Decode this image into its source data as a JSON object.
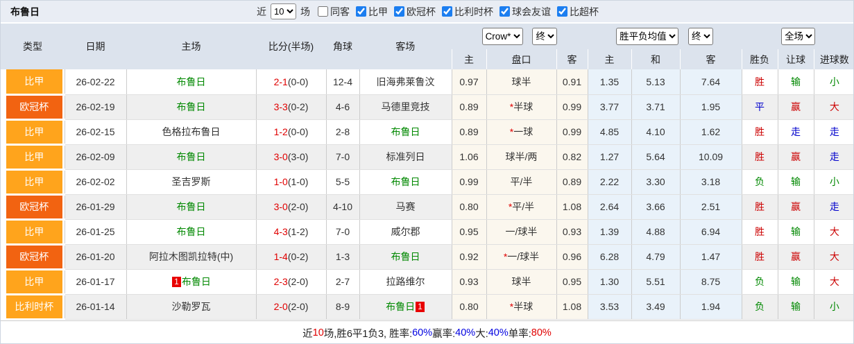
{
  "title": "布鲁日",
  "controls": {
    "recent_label": "近",
    "count_select": "10",
    "matches_label": "场",
    "checkboxes": [
      {
        "label": "同客",
        "checked": false
      },
      {
        "label": "比甲",
        "checked": true
      },
      {
        "label": "欧冠杯",
        "checked": true
      },
      {
        "label": "比利时杯",
        "checked": true
      },
      {
        "label": "球会友谊",
        "checked": true
      },
      {
        "label": "比超杯",
        "checked": true
      }
    ]
  },
  "header": {
    "columns": [
      "类型",
      "日期",
      "主场",
      "比分(半场)",
      "角球",
      "客场"
    ],
    "odds_select": "Crow*",
    "odds_state_select": "终",
    "avg_select": "胜平负均值",
    "avg_state_select": "终",
    "scope_select": "全场",
    "sub_columns": [
      "主",
      "盘口",
      "客",
      "主",
      "和",
      "客",
      "胜负",
      "让球",
      "进球数"
    ]
  },
  "rows": [
    {
      "type": "比甲",
      "date": "26-02-22",
      "home": "布鲁日",
      "home_self": true,
      "home_rank": "",
      "score": "2-1",
      "half": "(0-0)",
      "corners": "12-4",
      "away": "旧海弗莱鲁汶",
      "away_self": false,
      "away_rank": "",
      "odds_home": "0.97",
      "handicap": "球半",
      "handicap_star": false,
      "odds_away": "0.91",
      "avg_home": "1.35",
      "avg_draw": "5.13",
      "avg_away": "7.64",
      "result": "胜",
      "handicap_res": "输",
      "goals": "小"
    },
    {
      "type": "欧冠杯",
      "date": "26-02-19",
      "home": "布鲁日",
      "home_self": true,
      "home_rank": "",
      "score": "3-3",
      "half": "(0-2)",
      "corners": "4-6",
      "away": "马德里竞技",
      "away_self": false,
      "away_rank": "",
      "odds_home": "0.89",
      "handicap": "半球",
      "handicap_star": true,
      "odds_away": "0.99",
      "avg_home": "3.77",
      "avg_draw": "3.71",
      "avg_away": "1.95",
      "result": "平",
      "handicap_res": "赢",
      "goals": "大"
    },
    {
      "type": "比甲",
      "date": "26-02-15",
      "home": "色格拉布鲁日",
      "home_self": false,
      "home_rank": "",
      "score": "1-2",
      "half": "(0-0)",
      "corners": "2-8",
      "away": "布鲁日",
      "away_self": true,
      "away_rank": "",
      "odds_home": "0.89",
      "handicap": "一球",
      "handicap_star": true,
      "odds_away": "0.99",
      "avg_home": "4.85",
      "avg_draw": "4.10",
      "avg_away": "1.62",
      "result": "胜",
      "handicap_res": "走",
      "goals": "走"
    },
    {
      "type": "比甲",
      "date": "26-02-09",
      "home": "布鲁日",
      "home_self": true,
      "home_rank": "",
      "score": "3-0",
      "half": "(3-0)",
      "corners": "7-0",
      "away": "标准列日",
      "away_self": false,
      "away_rank": "",
      "odds_home": "1.06",
      "handicap": "球半/两",
      "handicap_star": false,
      "odds_away": "0.82",
      "avg_home": "1.27",
      "avg_draw": "5.64",
      "avg_away": "10.09",
      "result": "胜",
      "handicap_res": "赢",
      "goals": "走"
    },
    {
      "type": "比甲",
      "date": "26-02-02",
      "home": "圣吉罗斯",
      "home_self": false,
      "home_rank": "",
      "score": "1-0",
      "half": "(1-0)",
      "corners": "5-5",
      "away": "布鲁日",
      "away_self": true,
      "away_rank": "",
      "odds_home": "0.99",
      "handicap": "平/半",
      "handicap_star": false,
      "odds_away": "0.89",
      "avg_home": "2.22",
      "avg_draw": "3.30",
      "avg_away": "3.18",
      "result": "负",
      "handicap_res": "输",
      "goals": "小"
    },
    {
      "type": "欧冠杯",
      "date": "26-01-29",
      "home": "布鲁日",
      "home_self": true,
      "home_rank": "",
      "score": "3-0",
      "half": "(2-0)",
      "corners": "4-10",
      "away": "马赛",
      "away_self": false,
      "away_rank": "",
      "odds_home": "0.80",
      "handicap": "平/半",
      "handicap_star": true,
      "odds_away": "1.08",
      "avg_home": "2.64",
      "avg_draw": "3.66",
      "avg_away": "2.51",
      "result": "胜",
      "handicap_res": "赢",
      "goals": "走"
    },
    {
      "type": "比甲",
      "date": "26-01-25",
      "home": "布鲁日",
      "home_self": true,
      "home_rank": "",
      "score": "4-3",
      "half": "(1-2)",
      "corners": "7-0",
      "away": "威尔郡",
      "away_self": false,
      "away_rank": "",
      "odds_home": "0.95",
      "handicap": "一/球半",
      "handicap_star": false,
      "odds_away": "0.93",
      "avg_home": "1.39",
      "avg_draw": "4.88",
      "avg_away": "6.94",
      "result": "胜",
      "handicap_res": "输",
      "goals": "大"
    },
    {
      "type": "欧冠杯",
      "date": "26-01-20",
      "home": "阿拉木图凯拉特(中)",
      "home_self": false,
      "home_rank": "",
      "score": "1-4",
      "half": "(0-2)",
      "corners": "1-3",
      "away": "布鲁日",
      "away_self": true,
      "away_rank": "",
      "odds_home": "0.92",
      "handicap": "一/球半",
      "handicap_star": true,
      "odds_away": "0.96",
      "avg_home": "6.28",
      "avg_draw": "4.79",
      "avg_away": "1.47",
      "result": "胜",
      "handicap_res": "赢",
      "goals": "大"
    },
    {
      "type": "比甲",
      "date": "26-01-17",
      "home": "布鲁日",
      "home_self": true,
      "home_rank": "1",
      "score": "2-3",
      "half": "(2-0)",
      "corners": "2-7",
      "away": "拉路维尔",
      "away_self": false,
      "away_rank": "",
      "odds_home": "0.93",
      "handicap": "球半",
      "handicap_star": false,
      "odds_away": "0.95",
      "avg_home": "1.30",
      "avg_draw": "5.51",
      "avg_away": "8.75",
      "result": "负",
      "handicap_res": "输",
      "goals": "大"
    },
    {
      "type": "比利时杯",
      "date": "26-01-14",
      "home": "沙勒罗瓦",
      "home_self": false,
      "home_rank": "",
      "score": "2-0",
      "half": "(2-0)",
      "corners": "8-9",
      "away": "布鲁日",
      "away_self": true,
      "away_rank": "1",
      "odds_home": "0.80",
      "handicap": "半球",
      "handicap_star": true,
      "odds_away": "1.08",
      "avg_home": "3.53",
      "avg_draw": "3.49",
      "avg_away": "1.94",
      "result": "负",
      "handicap_res": "输",
      "goals": "小"
    }
  ],
  "summary": {
    "segments": [
      {
        "text": "近",
        "color": "k"
      },
      {
        "text": "10",
        "color": "r"
      },
      {
        "text": "场,胜6平1负3, 胜率:",
        "color": "k"
      },
      {
        "text": "60%",
        "color": "b"
      },
      {
        "text": " 赢率:",
        "color": "k"
      },
      {
        "text": "40%",
        "color": "b"
      },
      {
        "text": " 大:",
        "color": "k"
      },
      {
        "text": "40%",
        "color": "b"
      },
      {
        "text": " 单率:",
        "color": "k"
      },
      {
        "text": "80%",
        "color": "r"
      }
    ]
  },
  "colors": {
    "type_colors": {
      "比甲": "#ffa41c",
      "欧冠杯": "#f26311",
      "比利时杯": "#ffa41c"
    },
    "verdict": {
      "胜": "#cc0000",
      "平": "#0000cc",
      "负": "#008800",
      "赢": "#cc0000",
      "输": "#008800",
      "走": "#0000cc",
      "大": "#cc0000",
      "小": "#008800"
    },
    "summary_palette": {
      "k": "#222222",
      "r": "#e00000",
      "b": "#0000e0"
    },
    "self_team": "#008800",
    "score_ft": "#e00000",
    "rank_badge_bg": "#e80000"
  }
}
